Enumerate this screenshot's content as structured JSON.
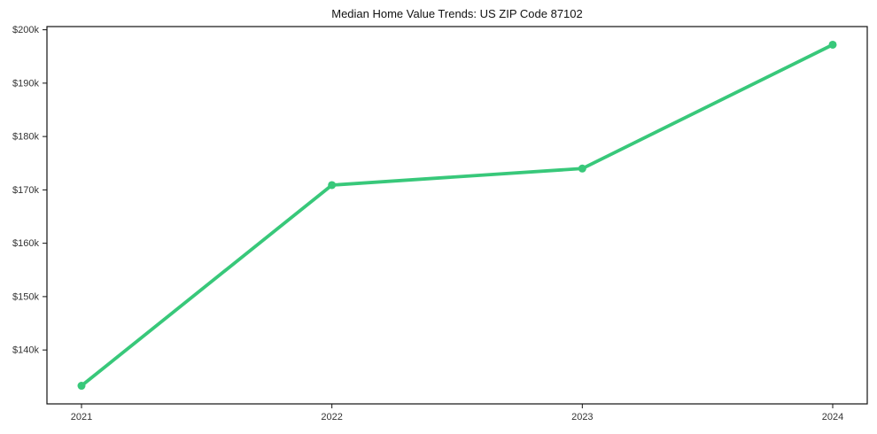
{
  "chart_data": {
    "type": "line",
    "title": "Median Home Value Trends: US ZIP Code 87102",
    "categories": [
      "2021",
      "2022",
      "2023",
      "2024"
    ],
    "series": [
      {
        "color": "#38c87a",
        "marker": "circle",
        "values": [
          133300,
          170900,
          174000,
          197200
        ]
      }
    ],
    "xlabel": "",
    "ylabel": "",
    "ylim": [
      129900,
      200600
    ],
    "yticks": [
      {
        "value": 140000,
        "label": "$140k"
      },
      {
        "value": 150000,
        "label": "$150k"
      },
      {
        "value": 160000,
        "label": "$160k"
      },
      {
        "value": 170000,
        "label": "$170k"
      },
      {
        "value": 180000,
        "label": "$180k"
      },
      {
        "value": 190000,
        "label": "$190k"
      },
      {
        "value": 200000,
        "label": "$200k"
      }
    ],
    "grid": false,
    "legend_visible": false,
    "frame": "box",
    "colors": {
      "axis": "#111111",
      "tick_label": "#333333",
      "title": "#111111",
      "background": "#ffffff"
    }
  }
}
